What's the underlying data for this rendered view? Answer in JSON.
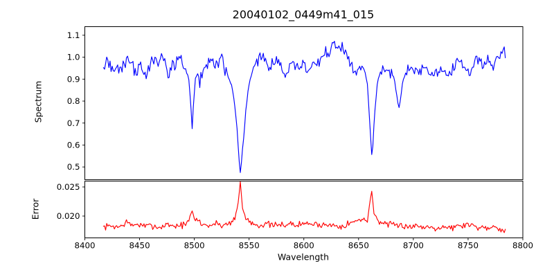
{
  "title": "20040102_0449m41_015",
  "colors": {
    "spectrum_line": "#0000ff",
    "error_line": "#ff0000",
    "axis": "#000000",
    "background": "#ffffff"
  },
  "chart_data": [
    {
      "type": "line",
      "title": "20040102_0449m41_015",
      "ylabel": "Spectrum",
      "xlim": [
        8400,
        8800
      ],
      "ylim": [
        0.442,
        1.139
      ],
      "yticks": [
        0.5,
        0.6,
        0.7,
        0.8,
        0.9,
        1.0,
        1.1
      ],
      "ytick_labels": [
        "0.5",
        "0.6",
        "0.7",
        "0.8",
        "0.9",
        "1.0",
        "1.1"
      ],
      "grid": false,
      "legend": "none",
      "noise": {
        "sigma": 0.015,
        "step": 1.0,
        "seed": 42,
        "quiet_sigma": 0.004,
        "quiet_regions": [
          [
            8494,
            8504
          ],
          [
            8530,
            8555
          ],
          [
            8654,
            8670
          ],
          [
            8682,
            8693
          ]
        ]
      },
      "series": [
        {
          "name": "spectrum",
          "color": "#0000ff",
          "points": [
            [
              8417,
              0.97
            ],
            [
              8420,
              0.975
            ],
            [
              8424,
              0.95
            ],
            [
              8428,
              0.935
            ],
            [
              8432,
              0.955
            ],
            [
              8436,
              0.965
            ],
            [
              8440,
              1.0
            ],
            [
              8444,
              0.955
            ],
            [
              8447,
              0.915
            ],
            [
              8450,
              0.975
            ],
            [
              8453,
              0.945
            ],
            [
              8456,
              0.91
            ],
            [
              8459,
              0.945
            ],
            [
              8462,
              0.985
            ],
            [
              8465,
              0.995
            ],
            [
              8468,
              0.95
            ],
            [
              8471,
              1.01
            ],
            [
              8474,
              0.975
            ],
            [
              8477,
              0.915
            ],
            [
              8480,
              0.96
            ],
            [
              8483,
              0.97
            ],
            [
              8486,
              1.0
            ],
            [
              8489,
              0.965
            ],
            [
              8492,
              0.945
            ],
            [
              8495,
              0.9
            ],
            [
              8497,
              0.76
            ],
            [
              8498,
              0.672
            ],
            [
              8499,
              0.76
            ],
            [
              8501,
              0.9
            ],
            [
              8503,
              0.93
            ],
            [
              8505,
              0.89
            ],
            [
              8507,
              0.93
            ],
            [
              8510,
              0.955
            ],
            [
              8513,
              0.975
            ],
            [
              8516,
              0.995
            ],
            [
              8519,
              0.96
            ],
            [
              8522,
              0.975
            ],
            [
              8525,
              0.995
            ],
            [
              8528,
              0.94
            ],
            [
              8531,
              0.915
            ],
            [
              8534,
              0.875
            ],
            [
              8537,
              0.78
            ],
            [
              8539,
              0.67
            ],
            [
              8541,
              0.52
            ],
            [
              8542,
              0.478
            ],
            [
              8543,
              0.52
            ],
            [
              8545,
              0.63
            ],
            [
              8547,
              0.75
            ],
            [
              8549,
              0.85
            ],
            [
              8551,
              0.9
            ],
            [
              8554,
              0.95
            ],
            [
              8557,
              0.985
            ],
            [
              8560,
              1.0
            ],
            [
              8563,
              1.005
            ],
            [
              8566,
              0.98
            ],
            [
              8569,
              0.955
            ],
            [
              8572,
              0.965
            ],
            [
              8575,
              0.985
            ],
            [
              8578,
              0.96
            ],
            [
              8581,
              0.93
            ],
            [
              8584,
              0.915
            ],
            [
              8587,
              0.96
            ],
            [
              8590,
              0.975
            ],
            [
              8593,
              0.96
            ],
            [
              8596,
              0.95
            ],
            [
              8599,
              0.965
            ],
            [
              8602,
              0.945
            ],
            [
              8605,
              0.93
            ],
            [
              8608,
              0.96
            ],
            [
              8611,
              0.97
            ],
            [
              8614,
              0.985
            ],
            [
              8617,
              1.0
            ],
            [
              8620,
              1.02
            ],
            [
              8623,
              1.03
            ],
            [
              8626,
              1.045
            ],
            [
              8629,
              1.05
            ],
            [
              8632,
              1.045
            ],
            [
              8635,
              1.035
            ],
            [
              8638,
              1.015
            ],
            [
              8641,
              0.995
            ],
            [
              8644,
              0.96
            ],
            [
              8647,
              0.91
            ],
            [
              8650,
              0.955
            ],
            [
              8653,
              0.96
            ],
            [
              8656,
              0.935
            ],
            [
              8658,
              0.875
            ],
            [
              8660,
              0.72
            ],
            [
              8662,
              0.552
            ],
            [
              8663,
              0.6
            ],
            [
              8665,
              0.76
            ],
            [
              8667,
              0.88
            ],
            [
              8669,
              0.92
            ],
            [
              8672,
              0.945
            ],
            [
              8675,
              0.955
            ],
            [
              8678,
              0.94
            ],
            [
              8681,
              0.925
            ],
            [
              8683,
              0.89
            ],
            [
              8685,
              0.82
            ],
            [
              8687,
              0.77
            ],
            [
              8688,
              0.8
            ],
            [
              8690,
              0.875
            ],
            [
              8693,
              0.93
            ],
            [
              8697,
              0.955
            ],
            [
              8701,
              0.945
            ],
            [
              8705,
              0.925
            ],
            [
              8709,
              0.955
            ],
            [
              8713,
              0.94
            ],
            [
              8717,
              0.915
            ],
            [
              8721,
              0.945
            ],
            [
              8725,
              0.93
            ],
            [
              8729,
              0.95
            ],
            [
              8733,
              0.91
            ],
            [
              8737,
              0.955
            ],
            [
              8741,
              0.975
            ],
            [
              8745,
              0.97
            ],
            [
              8749,
              0.92
            ],
            [
              8753,
              0.945
            ],
            [
              8757,
              1.0
            ],
            [
              8761,
              0.975
            ],
            [
              8765,
              0.96
            ],
            [
              8769,
              0.985
            ],
            [
              8773,
              0.95
            ],
            [
              8777,
              1.0
            ],
            [
              8781,
              1.02
            ],
            [
              8783,
              1.03
            ],
            [
              8784,
              1.0
            ]
          ]
        }
      ]
    },
    {
      "type": "line",
      "ylabel": "Error",
      "xlabel": "Wavelength",
      "xlim": [
        8400,
        8800
      ],
      "ylim": [
        0.01625,
        0.02601
      ],
      "xticks": [
        8400,
        8450,
        8500,
        8550,
        8600,
        8650,
        8700,
        8750,
        8800
      ],
      "xtick_labels": [
        "8400",
        "8450",
        "8500",
        "8550",
        "8600",
        "8650",
        "8700",
        "8750",
        "8800"
      ],
      "yticks": [
        0.02,
        0.025
      ],
      "ytick_labels": [
        "0.020",
        "0.025"
      ],
      "grid": false,
      "legend": "none",
      "noise": {
        "sigma": 0.00028,
        "step": 1.0,
        "seed": 7,
        "quiet_sigma": 8e-05,
        "quiet_regions": [
          [
            8538,
            8546
          ],
          [
            8659,
            8666
          ]
        ]
      },
      "series": [
        {
          "name": "error",
          "color": "#ff0000",
          "points": [
            [
              8417,
              0.0181
            ],
            [
              8425,
              0.0183
            ],
            [
              8432,
              0.0181
            ],
            [
              8438,
              0.019
            ],
            [
              8442,
              0.0184
            ],
            [
              8448,
              0.0186
            ],
            [
              8455,
              0.0182
            ],
            [
              8462,
              0.0184
            ],
            [
              8468,
              0.018
            ],
            [
              8475,
              0.0186
            ],
            [
              8482,
              0.0183
            ],
            [
              8488,
              0.0184
            ],
            [
              8494,
              0.0188
            ],
            [
              8497,
              0.0202
            ],
            [
              8498,
              0.0208
            ],
            [
              8500,
              0.0195
            ],
            [
              8503,
              0.0193
            ],
            [
              8508,
              0.0185
            ],
            [
              8514,
              0.0184
            ],
            [
              8520,
              0.0187
            ],
            [
              8526,
              0.0184
            ],
            [
              8532,
              0.0188
            ],
            [
              8537,
              0.0196
            ],
            [
              8540,
              0.0222
            ],
            [
              8542,
              0.0259
            ],
            [
              8544,
              0.0213
            ],
            [
              8547,
              0.0197
            ],
            [
              8551,
              0.019
            ],
            [
              8556,
              0.0186
            ],
            [
              8562,
              0.0184
            ],
            [
              8568,
              0.0186
            ],
            [
              8574,
              0.0183
            ],
            [
              8580,
              0.0185
            ],
            [
              8586,
              0.0187
            ],
            [
              8592,
              0.0184
            ],
            [
              8598,
              0.0186
            ],
            [
              8604,
              0.0188
            ],
            [
              8610,
              0.0185
            ],
            [
              8616,
              0.0186
            ],
            [
              8622,
              0.0184
            ],
            [
              8628,
              0.0185
            ],
            [
              8634,
              0.0183
            ],
            [
              8640,
              0.0186
            ],
            [
              8645,
              0.019
            ],
            [
              8650,
              0.0192
            ],
            [
              8655,
              0.0195
            ],
            [
              8658,
              0.0193
            ],
            [
              8661,
              0.0232
            ],
            [
              8662,
              0.0243
            ],
            [
              8664,
              0.0205
            ],
            [
              8667,
              0.0195
            ],
            [
              8670,
              0.019
            ],
            [
              8674,
              0.0186
            ],
            [
              8680,
              0.0184
            ],
            [
              8686,
              0.0183
            ],
            [
              8692,
              0.0184
            ],
            [
              8698,
              0.0182
            ],
            [
              8704,
              0.0183
            ],
            [
              8710,
              0.0181
            ],
            [
              8716,
              0.0182
            ],
            [
              8722,
              0.018
            ],
            [
              8728,
              0.0182
            ],
            [
              8734,
              0.018
            ],
            [
              8740,
              0.0182
            ],
            [
              8746,
              0.0184
            ],
            [
              8750,
              0.0187
            ],
            [
              8754,
              0.0183
            ],
            [
              8760,
              0.0181
            ],
            [
              8766,
              0.018
            ],
            [
              8772,
              0.0182
            ],
            [
              8778,
              0.018
            ],
            [
              8784,
              0.0175
            ]
          ]
        }
      ]
    }
  ]
}
